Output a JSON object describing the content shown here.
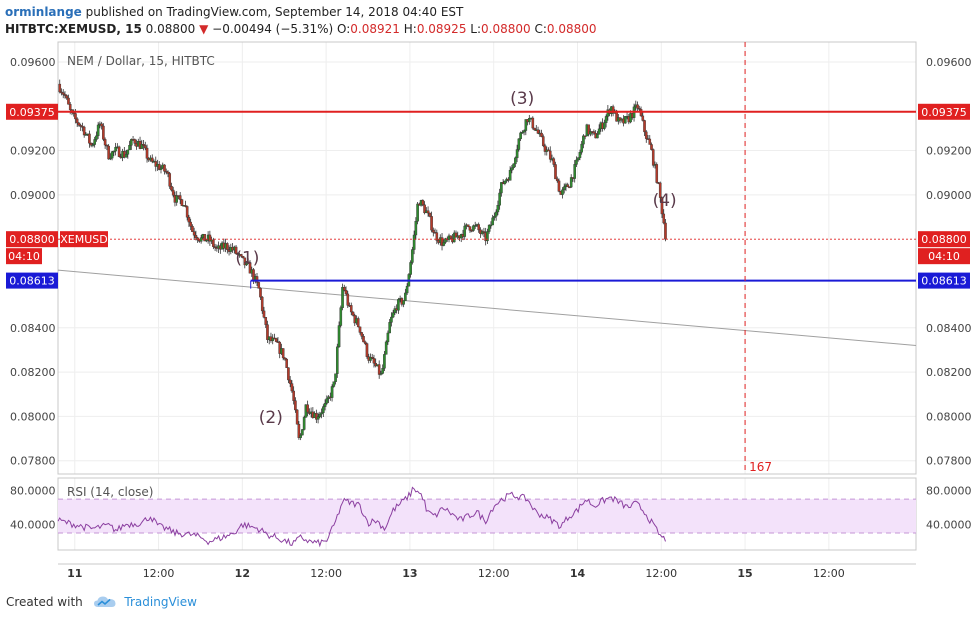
{
  "header": {
    "user": "orminlange",
    "published": "published on TradingView.com, September 14, 2018 04:40 EST",
    "symbol": "HITBTC:XEMUSD, 15",
    "last": "0.08800",
    "change": "−0.00494 (−5.31%)",
    "o_label": "O:",
    "o_value": "0.08921",
    "h_label": "H:",
    "h_value": "0.08925",
    "l_label": "L:",
    "l_value": "0.08800",
    "c_label": "C:",
    "c_value": "0.08800"
  },
  "colors": {
    "up": "#2f8a2f",
    "down": "#b33a2a",
    "resistance": "#e02020",
    "support": "#1a1ad6",
    "trendline": "#a0a0a0",
    "rsi_line": "#8b3fa0",
    "rsi_band": "#f3e2fa",
    "grid": "#eeeeee"
  },
  "footer": {
    "created_with": "Created with",
    "brand": "TradingView",
    "logo_icon": "tradingview-cloud-icon"
  },
  "chart_data": [
    {
      "type": "candlestick",
      "title": "NEM / Dollar, 15, HITBTC",
      "ylim": [
        0.0774,
        0.0969
      ],
      "y_ticks": [
        "0.09600",
        "0.09200",
        "0.09000",
        "0.08400",
        "0.08200",
        "0.08000",
        "0.07800"
      ],
      "y_tick_values": [
        0.096,
        0.092,
        0.09,
        0.084,
        0.082,
        0.08,
        0.078
      ],
      "x_ticks": [
        "11",
        "12:00",
        "12",
        "12:00",
        "13",
        "12:00",
        "14",
        "12:00",
        "15",
        "12:00"
      ],
      "x_tick_days": [
        0,
        0.5,
        1,
        1.5,
        2,
        2.5,
        3,
        3.5,
        4,
        4.5
      ],
      "x_bold": [
        true,
        false,
        true,
        false,
        true,
        false,
        true,
        false,
        true,
        false
      ],
      "price_labels": {
        "resistance": "0.09375",
        "current": "0.08800",
        "symbol_tag": "XEMUSD",
        "countdown": "04:10",
        "support": "0.08613"
      },
      "levels": {
        "resistance": 0.09375,
        "current": 0.088,
        "support": 0.08613
      },
      "trendline": {
        "start": [
          -0.1,
          0.0866
        ],
        "end": [
          5.02,
          0.0832
        ]
      },
      "support_line_start_day": 1.05,
      "cursor_day": 4.0,
      "cursor_label": "167",
      "annotations": [
        {
          "text": "(1)",
          "day": 1.03,
          "price": 0.0869
        },
        {
          "text": "(2)",
          "day": 1.17,
          "price": 0.0797
        },
        {
          "text": "(3)",
          "day": 2.67,
          "price": 0.0941
        },
        {
          "text": "(4)",
          "day": 3.52,
          "price": 0.0895
        }
      ],
      "close_path": [
        [
          -0.1,
          0.095
        ],
        [
          -0.06,
          0.0945
        ],
        [
          -0.02,
          0.0936
        ],
        [
          0.05,
          0.093
        ],
        [
          0.1,
          0.0922
        ],
        [
          0.15,
          0.0932
        ],
        [
          0.2,
          0.0918
        ],
        [
          0.25,
          0.092
        ],
        [
          0.3,
          0.0918
        ],
        [
          0.35,
          0.0925
        ],
        [
          0.4,
          0.0922
        ],
        [
          0.45,
          0.0915
        ],
        [
          0.5,
          0.0913
        ],
        [
          0.55,
          0.091
        ],
        [
          0.6,
          0.0898
        ],
        [
          0.65,
          0.0897
        ],
        [
          0.7,
          0.0884
        ],
        [
          0.75,
          0.088
        ],
        [
          0.8,
          0.088
        ],
        [
          0.85,
          0.0875
        ],
        [
          0.9,
          0.0877
        ],
        [
          0.95,
          0.0875
        ],
        [
          1.0,
          0.087
        ],
        [
          1.05,
          0.0866
        ],
        [
          1.1,
          0.0857
        ],
        [
          1.15,
          0.0835
        ],
        [
          1.2,
          0.0833
        ],
        [
          1.25,
          0.0827
        ],
        [
          1.3,
          0.081
        ],
        [
          1.34,
          0.0788
        ],
        [
          1.38,
          0.0805
        ],
        [
          1.44,
          0.08
        ],
        [
          1.5,
          0.0805
        ],
        [
          1.55,
          0.0815
        ],
        [
          1.6,
          0.086
        ],
        [
          1.64,
          0.0848
        ],
        [
          1.7,
          0.084
        ],
        [
          1.75,
          0.0827
        ],
        [
          1.8,
          0.0822
        ],
        [
          1.83,
          0.0818
        ],
        [
          1.88,
          0.0842
        ],
        [
          1.92,
          0.085
        ],
        [
          1.97,
          0.0853
        ],
        [
          2.02,
          0.0878
        ],
        [
          2.05,
          0.0898
        ],
        [
          2.1,
          0.0892
        ],
        [
          2.15,
          0.0882
        ],
        [
          2.2,
          0.0878
        ],
        [
          2.3,
          0.0882
        ],
        [
          2.35,
          0.0886
        ],
        [
          2.4,
          0.0885
        ],
        [
          2.45,
          0.088
        ],
        [
          2.5,
          0.089
        ],
        [
          2.55,
          0.0905
        ],
        [
          2.6,
          0.091
        ],
        [
          2.65,
          0.0925
        ],
        [
          2.7,
          0.0935
        ],
        [
          2.75,
          0.093
        ],
        [
          2.8,
          0.0922
        ],
        [
          2.85,
          0.0915
        ],
        [
          2.9,
          0.09
        ],
        [
          2.95,
          0.0905
        ],
        [
          3.0,
          0.0915
        ],
        [
          3.05,
          0.093
        ],
        [
          3.1,
          0.0926
        ],
        [
          3.15,
          0.0932
        ],
        [
          3.2,
          0.094
        ],
        [
          3.25,
          0.0932
        ],
        [
          3.3,
          0.0934
        ],
        [
          3.36,
          0.094
        ],
        [
          3.4,
          0.0929
        ],
        [
          3.44,
          0.092
        ],
        [
          3.48,
          0.0905
        ],
        [
          3.5,
          0.0895
        ],
        [
          3.53,
          0.088
        ]
      ],
      "rsi": {
        "label": "RSI (14, close)",
        "ylim": [
          10,
          95
        ],
        "band": [
          30,
          70
        ],
        "y_ticks": [
          "80.0000",
          "40.0000"
        ],
        "y_tick_values": [
          80,
          40
        ],
        "path": [
          [
            -0.1,
            45
          ],
          [
            0.0,
            40
          ],
          [
            0.1,
            35
          ],
          [
            0.2,
            39
          ],
          [
            0.25,
            33
          ],
          [
            0.3,
            40
          ],
          [
            0.4,
            42
          ],
          [
            0.45,
            50
          ],
          [
            0.5,
            38
          ],
          [
            0.55,
            35
          ],
          [
            0.6,
            30
          ],
          [
            0.7,
            28
          ],
          [
            0.75,
            25
          ],
          [
            0.8,
            20
          ],
          [
            0.9,
            26
          ],
          [
            0.95,
            30
          ],
          [
            1.0,
            40
          ],
          [
            1.1,
            35
          ],
          [
            1.15,
            28
          ],
          [
            1.2,
            25
          ],
          [
            1.3,
            17
          ],
          [
            1.35,
            25
          ],
          [
            1.4,
            20
          ],
          [
            1.45,
            18
          ],
          [
            1.5,
            20
          ],
          [
            1.55,
            40
          ],
          [
            1.6,
            68
          ],
          [
            1.7,
            63
          ],
          [
            1.75,
            42
          ],
          [
            1.8,
            45
          ],
          [
            1.85,
            35
          ],
          [
            1.9,
            57
          ],
          [
            2.0,
            75
          ],
          [
            2.02,
            84
          ],
          [
            2.08,
            72
          ],
          [
            2.1,
            55
          ],
          [
            2.15,
            50
          ],
          [
            2.2,
            60
          ],
          [
            2.3,
            45
          ],
          [
            2.4,
            55
          ],
          [
            2.45,
            44
          ],
          [
            2.5,
            62
          ],
          [
            2.55,
            70
          ],
          [
            2.6,
            75
          ],
          [
            2.65,
            73
          ],
          [
            2.7,
            70
          ],
          [
            2.75,
            55
          ],
          [
            2.8,
            50
          ],
          [
            2.85,
            45
          ],
          [
            2.9,
            38
          ],
          [
            2.95,
            50
          ],
          [
            3.0,
            57
          ],
          [
            3.05,
            70
          ],
          [
            3.1,
            62
          ],
          [
            3.15,
            68
          ],
          [
            3.2,
            72
          ],
          [
            3.3,
            60
          ],
          [
            3.35,
            65
          ],
          [
            3.4,
            55
          ],
          [
            3.45,
            40
          ],
          [
            3.5,
            25
          ],
          [
            3.53,
            22
          ]
        ]
      }
    }
  ]
}
